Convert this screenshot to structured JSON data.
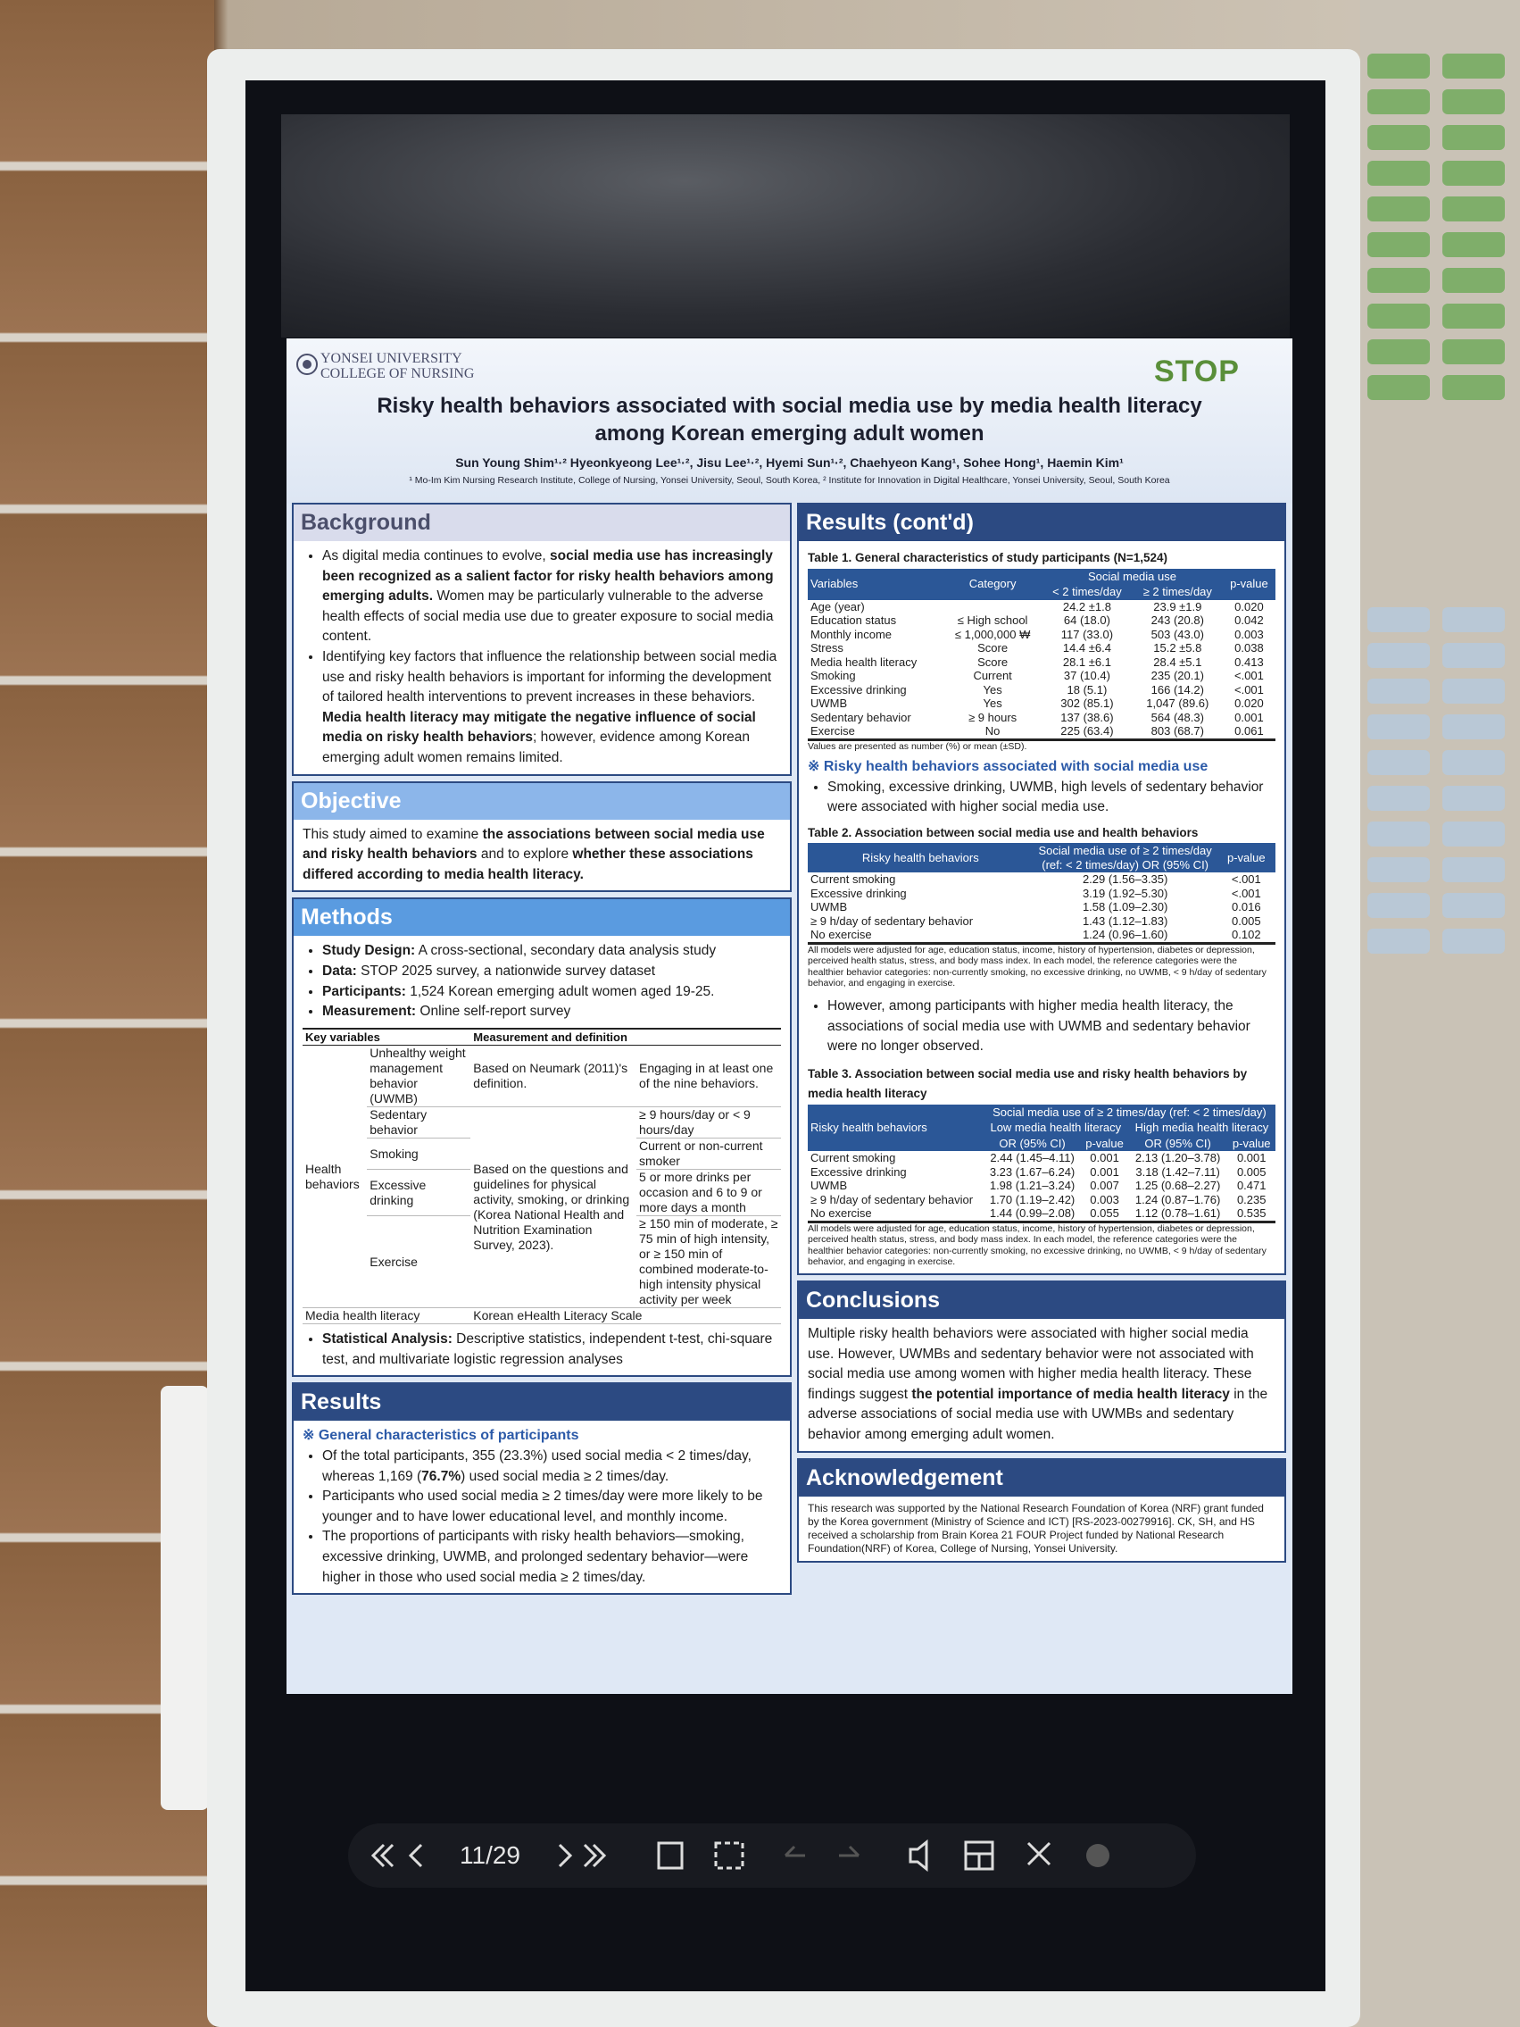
{
  "display": {
    "page_indicator": "11/29"
  },
  "header": {
    "institution_line1": "YONSEI UNIVERSITY",
    "institution_line2": "COLLEGE OF NURSING",
    "logo": "STOP",
    "title_line1": "Risky health behaviors associated with social media use by media health literacy",
    "title_line2": "among Korean emerging adult women",
    "authors": "Sun Young Shim¹·² Hyeonkyeong Lee¹·², Jisu Lee¹·², Hyemi Sun¹·², Chaehyeon Kang¹, Sohee Hong¹, Haemin Kim¹",
    "affiliations": "¹ Mo-Im Kim Nursing Research Institute, College of Nursing, Yonsei University, Seoul, South Korea, ² Institute for Innovation in Digital Healthcare, Yonsei University, Seoul, South Korea"
  },
  "background": {
    "title": "Background",
    "bullets": [
      [
        "As digital media continues to evolve, ",
        "social media use has increasingly been recognized as a salient factor for risky health behaviors among emerging adults.",
        " Women may be particularly vulnerable to the adverse health effects of social media use due to greater exposure to social media content."
      ],
      [
        "Identifying key factors that influence the relationship between social media use and risky health behaviors is important for informing the development of tailored health interventions to prevent increases in these behaviors. ",
        "Media health literacy may mitigate the negative influence of social media on risky health behaviors",
        "; however, evidence among Korean emerging adult women remains limited."
      ]
    ]
  },
  "objective": {
    "title": "Objective",
    "text": [
      "This study aimed to examine ",
      "the associations between social media use and risky health behaviors",
      " and to explore ",
      "whether these associations differed according to media health literacy."
    ]
  },
  "methods": {
    "title": "Methods",
    "items": [
      {
        "label": "Study Design:",
        "text": " A cross-sectional, secondary data analysis study"
      },
      {
        "label": "Data:",
        "text": " STOP 2025 survey, a nationwide survey dataset"
      },
      {
        "label": "Participants:",
        "text": " 1,524 Korean emerging adult women aged 19-25."
      },
      {
        "label": "Measurement:",
        "text": " Online self-report survey"
      }
    ],
    "key_table": {
      "headers": [
        "Key variables",
        "Measurement and definition"
      ],
      "group": "Health behaviors",
      "rows": [
        {
          "variable": "Unhealthy weight management behavior (UWMB)",
          "measure": "Based on Neumark (2011)'s definition.",
          "definition": "Engaging in at least one of the nine behaviors."
        },
        {
          "variable": "Sedentary behavior",
          "definition": "≥ 9 hours/day or < 9 hours/day"
        },
        {
          "variable": "Smoking",
          "definition": "Current or non-current smoker"
        },
        {
          "variable": "Excessive drinking",
          "definition": "5 or more drinks per occasion and 6 to 9 or more days a month"
        },
        {
          "variable": "Exercise",
          "definition": "≥ 150 min of moderate, ≥ 75 min of high intensity, or ≥ 150 min of combined moderate-to-high intensity physical activity per week"
        }
      ],
      "shared_measure": "Based on the questions and guidelines for physical activity, smoking, or drinking (Korea National Health and Nutrition Examination Survey, 2023).",
      "last_row": [
        "Media health literacy",
        "Korean eHealth Literacy Scale"
      ]
    },
    "statistical": {
      "label": "Statistical Analysis:",
      "text": " Descriptive statistics, independent t-test, chi-square test, and multivariate logistic regression analyses"
    }
  },
  "results": {
    "title": "Results",
    "subheading": "※ General characteristics of participants",
    "bullets": [
      [
        "Of the total participants, 355 (23.3%) used social media < 2 times/day, whereas 1,169 (",
        "76.7%",
        ") used social media ≥ 2 times/day."
      ],
      [
        "Participants who used social media ≥ 2 times/day were more likely to be younger and to have lower educational level, and monthly income."
      ],
      [
        "The proportions of participants with risky health behaviors—smoking, excessive drinking, UWMB, and prolonged sedentary behavior—were higher in those who used social media ≥ 2 times/day."
      ]
    ]
  },
  "results_contd": {
    "title": "Results (cont'd)",
    "table1": {
      "title": "Table 1. General characteristics of study participants (N=1,524)",
      "headers": {
        "variables": "Variables",
        "category": "Category",
        "group": "Social media use",
        "sub": [
          "< 2 times/day",
          "≥ 2 times/day"
        ],
        "p": "p-value"
      },
      "rows": [
        [
          "Age (year)",
          null,
          "24.2 ±1.8",
          "23.9 ±1.9",
          "0.020"
        ],
        [
          "Education status",
          "≤ High school",
          "64 (18.0)",
          "243 (20.8)",
          "0.042"
        ],
        [
          "Monthly income",
          "≤ 1,000,000 ₩",
          "117 (33.0)",
          "503 (43.0)",
          "0.003"
        ],
        [
          "Stress",
          "Score",
          "14.4 ±6.4",
          "15.2 ±5.8",
          "0.038"
        ],
        [
          "Media health literacy",
          "Score",
          "28.1 ±6.1",
          "28.4 ±5.1",
          "0.413"
        ],
        [
          "Smoking",
          "Current",
          "37 (10.4)",
          "235 (20.1)",
          "<.001"
        ],
        [
          "Excessive drinking",
          "Yes",
          "18 (5.1)",
          "166 (14.2)",
          "<.001"
        ],
        [
          "UWMB",
          "Yes",
          "302 (85.1)",
          "1,047 (89.6)",
          "0.020"
        ],
        [
          "Sedentary behavior",
          "≥ 9 hours",
          "137 (38.6)",
          "564 (48.3)",
          "0.001"
        ],
        [
          "Exercise",
          "No",
          "225 (63.4)",
          "803 (68.7)",
          "0.061"
        ]
      ],
      "note": "Values are presented as number (%) or mean (±SD)."
    },
    "subheading": "※ Risky health behaviors associated with social media use",
    "bullet1": [
      "Smoking, excessive drinking, UWMB, high levels of sedentary behavior were associated with higher social media use."
    ],
    "table2": {
      "title": "Table 2. Association between social media use and health behaviors",
      "headers": [
        "Risky health behaviors",
        "Social media use of ≥ 2 times/day (ref: < 2 times/day) OR (95% CI)",
        "p-value"
      ],
      "rows": [
        [
          "Current smoking",
          "2.29 (1.56–3.35)",
          "<.001"
        ],
        [
          "Excessive drinking",
          "3.19 (1.92–5.30)",
          "<.001"
        ],
        [
          "UWMB",
          "1.58 (1.09–2.30)",
          "0.016"
        ],
        [
          "≥ 9 h/day of sedentary behavior",
          "1.43 (1.12–1.83)",
          "0.005"
        ],
        [
          "No exercise",
          "1.24 (0.96–1.60)",
          "0.102"
        ]
      ],
      "note": "All models were adjusted for age, education status, income, history of hypertension, diabetes or depression, perceived health status, stress, and body mass index. In each model, the reference categories were the healthier behavior categories: non-currently smoking, no excessive drinking, no UWMB, < 9 h/day of sedentary behavior, and engaging in exercise."
    },
    "bullet2": [
      "However, among participants with higher media health literacy, the associations of social media use with UWMB and sedentary behavior were no longer observed."
    ],
    "table3": {
      "title": "Table 3. Association between social media use and risky health behaviors by media health literacy",
      "headers": {
        "behaviors": "Risky health behaviors",
        "group": "Social media use of ≥ 2 times/day (ref: < 2 times/day)",
        "subgroups": [
          "Low media health literacy",
          "High media health literacy"
        ],
        "cols": [
          "OR (95% CI)",
          "p-value",
          "OR (95% CI)",
          "p-value"
        ]
      },
      "rows": [
        [
          "Current smoking",
          "2.44 (1.45–4.11)",
          "0.001",
          "2.13 (1.20–3.78)",
          "0.001"
        ],
        [
          "Excessive drinking",
          "3.23 (1.67–6.24)",
          "0.001",
          "3.18 (1.42–7.11)",
          "0.005"
        ],
        [
          "UWMB",
          "1.98 (1.21–3.24)",
          "0.007",
          "1.25 (0.68–2.27)",
          "0.471"
        ],
        [
          "≥ 9 h/day of sedentary behavior",
          "1.70 (1.19–2.42)",
          "0.003",
          "1.24 (0.87–1.76)",
          "0.235"
        ],
        [
          "No exercise",
          "1.44 (0.99–2.08)",
          "0.055",
          "1.12 (0.78–1.61)",
          "0.535"
        ]
      ],
      "note": "All models were adjusted for age, education status, income, history of hypertension, diabetes or depression, perceived health status, stress, and body mass index. In each model, the reference categories were the healthier behavior categories: non-currently smoking, no excessive drinking, no UWMB, < 9 h/day of sedentary behavior, and engaging in exercise."
    }
  },
  "conclusions": {
    "title": "Conclusions",
    "text": [
      "Multiple risky health behaviors were associated with higher social media use. However, UWMBs and sedentary behavior were not associated with social media use among women with higher media health literacy. These findings suggest ",
      "the potential importance of media health literacy",
      " in the adverse associations of social media use with UWMBs and sedentary behavior among emerging adult women."
    ]
  },
  "acknowledgement": {
    "title": "Acknowledgement",
    "text": "This research was supported by the National Research Foundation of Korea (NRF) grant funded by the Korea government (Ministry of Science and ICT) [RS-2023-00279916]. CK, SH, and HS received a scholarship from Brain Korea 21 FOUR Project funded by National Research Foundation(NRF) of Korea, College of Nursing, Yonsei University."
  }
}
